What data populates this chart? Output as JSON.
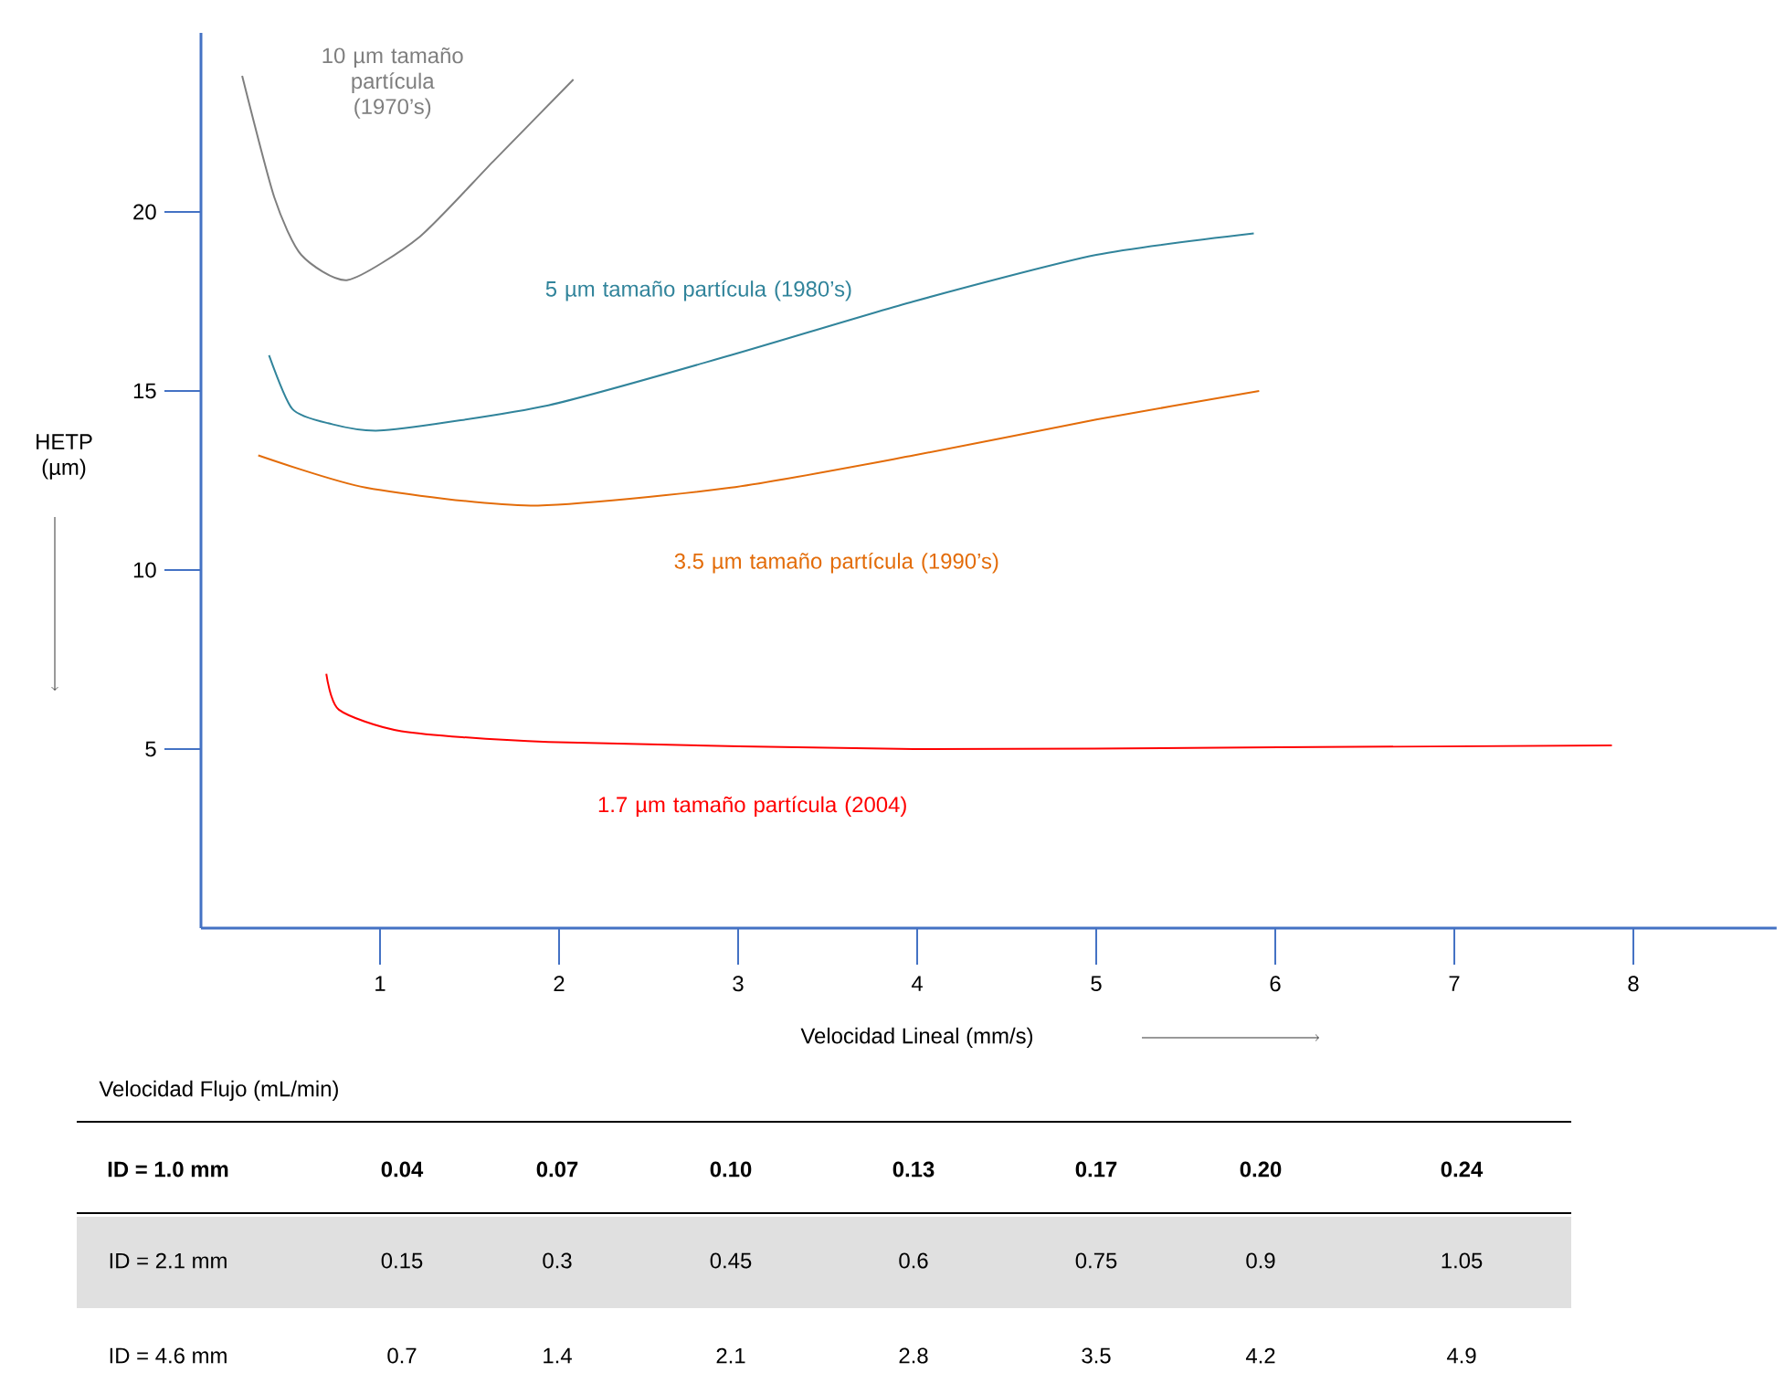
{
  "chart_data": {
    "type": "line",
    "xlabel": "Velocidad Lineal (mm/s)",
    "ylabel": "HETP (µm)",
    "xlim": [
      0,
      8.8
    ],
    "ylim": [
      0,
      25
    ],
    "xticks": [
      1,
      2,
      3,
      4,
      5,
      6,
      7,
      8
    ],
    "yticks": [
      5,
      10,
      15,
      20
    ],
    "grid": false,
    "legend": false,
    "marker": "none",
    "line_style": "solid",
    "series": [
      {
        "name": "10 µm tamaño partícula (1970’s)",
        "color": "#7f7f7f",
        "x": [
          0.23,
          0.41,
          0.56,
          0.82,
          1.22,
          1.63,
          2.08
        ],
        "values": [
          23.8,
          20.4,
          18.8,
          18.1,
          19.3,
          21.4,
          23.7
        ]
      },
      {
        "name": "5 µm tamaño partícula (1980’s)",
        "color": "#31849b",
        "x": [
          0.38,
          0.51,
          0.71,
          1.02,
          1.94,
          2.96,
          3.98,
          5.0,
          5.88
        ],
        "values": [
          16.0,
          14.5,
          14.1,
          13.9,
          14.6,
          16.0,
          17.5,
          18.8,
          19.4
        ]
      },
      {
        "name": "3.5 µm tamaño partícula (1990’s)",
        "color": "#e36c09",
        "x": [
          0.32,
          0.92,
          1.84,
          2.96,
          3.98,
          5.0,
          5.91
        ],
        "values": [
          13.2,
          12.3,
          11.8,
          12.3,
          13.2,
          14.2,
          15.0
        ]
      },
      {
        "name": "1.7 µm tamaño partícula (2004)",
        "color": "#ff0000",
        "x": [
          0.7,
          0.77,
          1.12,
          1.94,
          3.98,
          6.02,
          7.88
        ],
        "values": [
          7.1,
          6.1,
          5.5,
          5.2,
          5.0,
          5.05,
          5.1
        ]
      }
    ],
    "annotations": [
      "Velocidad Flujo (mL/min)",
      "ID = 1.0 mm",
      "0.04",
      "0.07",
      "0.10",
      "0.13",
      "0.17",
      "0.20",
      "0.24",
      "ID = 2.1 mm",
      "0.15",
      "0.3",
      "0.45",
      "0.6",
      "0.75",
      "0.9",
      "1.05",
      "ID = 4.6 mm",
      "0.7",
      "1.4",
      "2.1",
      "2.8",
      "3.5",
      "4.2",
      "4.9"
    ]
  }
}
